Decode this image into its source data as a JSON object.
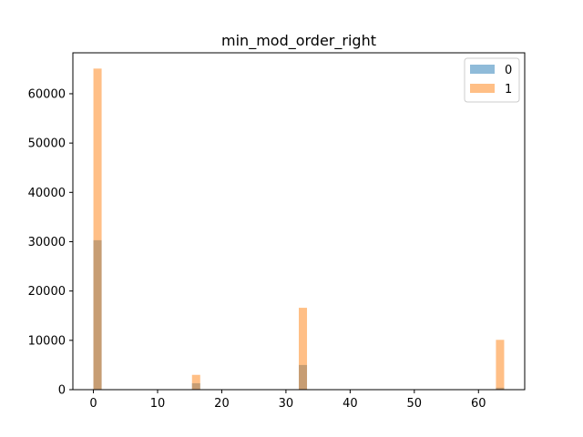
{
  "chart_data": {
    "type": "bar",
    "title": "min_mod_order_right",
    "xlabel": "",
    "ylabel": "",
    "xlim": [
      -3.2,
      67.2
    ],
    "ylim": [
      0,
      68300
    ],
    "x_ticks": [
      0,
      10,
      20,
      30,
      40,
      50,
      60
    ],
    "y_ticks": [
      0,
      10000,
      20000,
      30000,
      40000,
      50000,
      60000
    ],
    "bin_width": 1.28,
    "legend_position": "top-right",
    "grid": false,
    "series": [
      {
        "name": "0",
        "color": "#1f77b4",
        "opacity": 0.5,
        "bins": [
          {
            "x": 0,
            "value": 30300
          },
          {
            "x": 15.36,
            "value": 1300
          },
          {
            "x": 32,
            "value": 5000
          },
          {
            "x": 62.72,
            "value": 400
          }
        ]
      },
      {
        "name": "1",
        "color": "#ff7f0e",
        "opacity": 0.5,
        "bins": [
          {
            "x": 0,
            "value": 65100
          },
          {
            "x": 15.36,
            "value": 3000
          },
          {
            "x": 32,
            "value": 16600
          },
          {
            "x": 62.72,
            "value": 10100
          }
        ]
      }
    ]
  }
}
